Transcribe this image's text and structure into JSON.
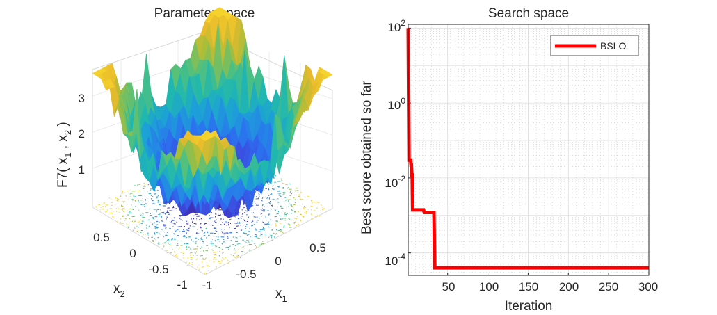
{
  "chart_data": [
    {
      "type": "surface",
      "title": "Parameter space",
      "xlabel": {
        "base": "x",
        "sub": "1"
      },
      "ylabel": {
        "base": "x",
        "sub": "2"
      },
      "zlabel": {
        "prefix": "F7( x",
        "sub1": "1",
        "mid": " , x",
        "sub2": "2",
        "suffix": " )"
      },
      "x_ticks": [
        "-1",
        "-0.5",
        "0",
        "0.5"
      ],
      "y_ticks": [
        "-1",
        "-0.5",
        "0",
        "0.5"
      ],
      "z_ticks": [
        "1",
        "2",
        "3"
      ],
      "xlim": [
        -1,
        1
      ],
      "ylim": [
        -1,
        1
      ],
      "zlim": [
        0,
        3.8
      ],
      "colormap": [
        "#3e26a8",
        "#3c4ce0",
        "#2b72f0",
        "#1da0d8",
        "#20b7b0",
        "#4fc080",
        "#a7be3b",
        "#e8b92c",
        "#f9d92c"
      ],
      "grid": true
    },
    {
      "type": "line",
      "title": "Search space",
      "xlabel": "Iteration",
      "ylabel": "Best score obtained so far",
      "xlim": [
        1,
        300
      ],
      "ylim_log10": [
        -4.6,
        2.1
      ],
      "yscale": "log",
      "x_ticks": [
        "50",
        "100",
        "150",
        "200",
        "250",
        "300"
      ],
      "y_ticks": [
        {
          "base": "10",
          "exp": "2"
        },
        {
          "base": "10",
          "exp": "0"
        },
        {
          "base": "10",
          "exp": "-2"
        },
        {
          "base": "10",
          "exp": "-4"
        }
      ],
      "grid": true,
      "legend_position": "top-right",
      "series": [
        {
          "name": "BSLO",
          "color": "#ff0000",
          "points": [
            [
              1,
              100
            ],
            [
              2,
              0.03
            ],
            [
              4,
              0.03
            ],
            [
              4.5,
              0.022
            ],
            [
              5,
              0.022
            ],
            [
              5.5,
              0.012
            ],
            [
              6,
              0.012
            ],
            [
              6.5,
              0.0014
            ],
            [
              20,
              0.0014
            ],
            [
              21,
              0.0012
            ],
            [
              33,
              0.0012
            ],
            [
              34,
              4e-05
            ],
            [
              300,
              4e-05
            ]
          ]
        }
      ]
    }
  ]
}
